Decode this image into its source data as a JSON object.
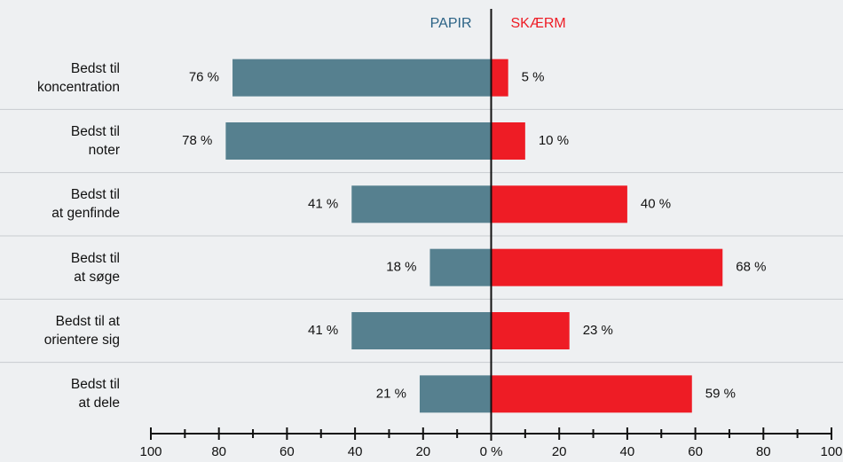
{
  "chart_data": {
    "type": "diverging-bar",
    "categories": [
      "Bedst til\nkoncentration",
      "Bedst til\nnoter",
      "Bedst til\nat genfinde",
      "Bedst til\nat søge",
      "Bedst til at\norientere sig",
      "Bedst til\nat dele"
    ],
    "series": [
      {
        "name": "PAPIR",
        "color": "#56808f",
        "label_color": "#2b6386",
        "side": "left",
        "values": [
          76,
          78,
          41,
          18,
          41,
          21
        ],
        "value_labels": [
          "76 %",
          "78 %",
          "41 %",
          "18 %",
          "41 %",
          "21 %"
        ]
      },
      {
        "name": "SKÆRM",
        "color": "#ee1c25",
        "label_color": "#ee1c25",
        "side": "right",
        "values": [
          5,
          10,
          40,
          68,
          23,
          59
        ],
        "value_labels": [
          "5 %",
          "10 %",
          "40 %",
          "68 %",
          "23 %",
          "59 %"
        ]
      }
    ],
    "xlim": [
      -100,
      100
    ],
    "xticks": [
      {
        "value": -100,
        "label": "100"
      },
      {
        "value": -80,
        "label": "80"
      },
      {
        "value": -60,
        "label": "60"
      },
      {
        "value": -40,
        "label": "40"
      },
      {
        "value": -20,
        "label": "20"
      },
      {
        "value": 0,
        "label": "0 %"
      },
      20,
      40,
      60,
      80,
      100
    ],
    "minor_xticks": [
      -90,
      -70,
      -50,
      -30,
      -10,
      10,
      30,
      50,
      70,
      90
    ]
  }
}
